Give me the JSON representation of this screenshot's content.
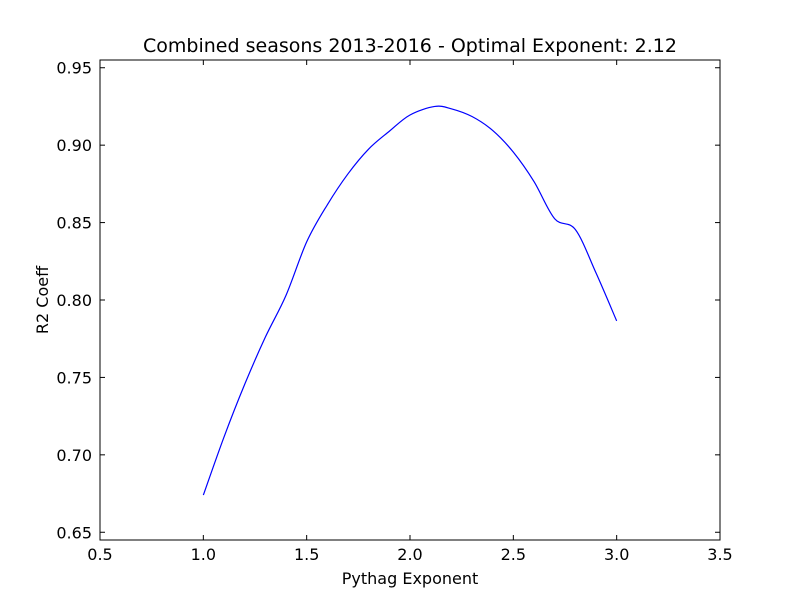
{
  "chart_data": {
    "type": "line",
    "title": "Combined seasons 2013-2016 - Optimal Exponent: 2.12",
    "xlabel": "Pythag Exponent",
    "ylabel": "R2 Coeff",
    "xlim": [
      0.5,
      3.5
    ],
    "ylim": [
      0.645,
      0.955
    ],
    "xticks": [
      0.5,
      1.0,
      1.5,
      2.0,
      2.5,
      3.0,
      3.5
    ],
    "xtick_labels": [
      "0.5",
      "1.0",
      "1.5",
      "2.0",
      "2.5",
      "3.0",
      "3.5"
    ],
    "yticks": [
      0.65,
      0.7,
      0.75,
      0.8,
      0.85,
      0.9,
      0.95
    ],
    "ytick_labels": [
      "0.65",
      "0.70",
      "0.75",
      "0.80",
      "0.85",
      "0.90",
      "0.95"
    ],
    "grid": false,
    "series": [
      {
        "color": "#0000ff",
        "x": [
          1.0,
          1.1,
          1.2,
          1.3,
          1.4,
          1.5,
          1.6,
          1.7,
          1.8,
          1.9,
          2.0,
          2.12,
          2.2,
          2.3,
          2.4,
          2.5,
          2.6,
          2.7,
          2.8,
          2.9,
          3.0
        ],
        "y": [
          0.674,
          0.7115,
          0.7455,
          0.776,
          0.803,
          0.8375,
          0.8615,
          0.8815,
          0.8975,
          0.909,
          0.9195,
          0.925,
          0.9235,
          0.9185,
          0.9095,
          0.8955,
          0.8765,
          0.8525,
          0.8455,
          0.8175,
          0.7865
        ]
      }
    ]
  }
}
